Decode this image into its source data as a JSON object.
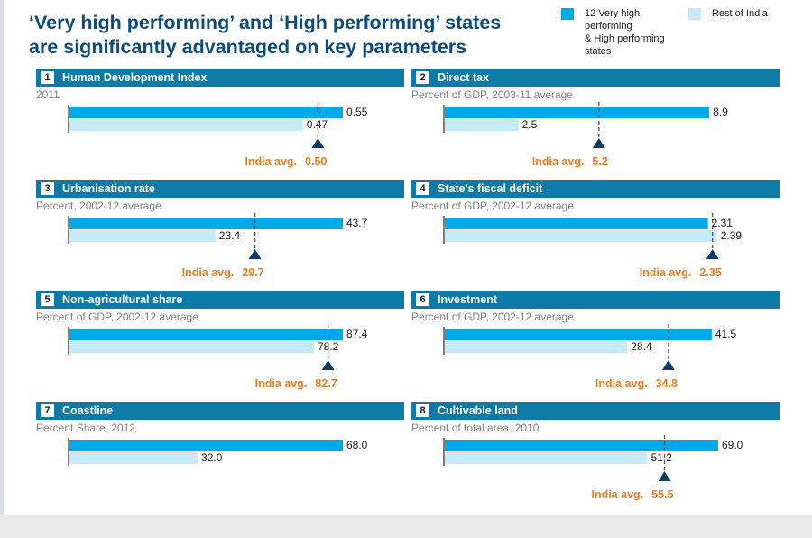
{
  "title": {
    "line1": "‘Very high performing’ and ‘High performing’ states",
    "line2": "are significantly advantaged on key parameters"
  },
  "legend": {
    "series1": [
      "12 Very high",
      "performing",
      "& High performing",
      "states"
    ],
    "series2": "Rest of India"
  },
  "colors": {
    "series1": "#00a9e8",
    "series2": "#c5eaf9",
    "header": "#0e7aa8",
    "india_avg": "#f07d1c",
    "marker": "#0d3a66"
  },
  "avg_label": "India avg.",
  "chart_data": [
    {
      "type": "bar",
      "number": "1",
      "title": "Human Development Index",
      "subtitle": "2011",
      "series": [
        {
          "name": "12 Very high performing & High performing states",
          "value": 0.55,
          "label": "0.55"
        },
        {
          "name": "Rest of India",
          "value": 0.47,
          "label": "0.47"
        }
      ],
      "india_avg": 0.5,
      "india_avg_label": "0.50",
      "xlim": [
        0.0,
        0.55
      ]
    },
    {
      "type": "bar",
      "number": "2",
      "title": "Direct tax",
      "subtitle": "Percent of GDP, 2003-11 average",
      "series": [
        {
          "name": "12 Very high performing & High performing states",
          "value": 8.9,
          "label": "8.9"
        },
        {
          "name": "Rest of India",
          "value": 2.5,
          "label": "2.5"
        }
      ],
      "india_avg": 5.2,
      "india_avg_label": "5.2",
      "xlim": [
        0,
        9.2
      ]
    },
    {
      "type": "bar",
      "number": "3",
      "title": "Urbanisation rate",
      "subtitle": "Percent, 2002-12 average",
      "series": [
        {
          "name": "12 Very high performing & High performing states",
          "value": 43.7,
          "label": "43.7"
        },
        {
          "name": "Rest of India",
          "value": 23.4,
          "label": "23.4"
        }
      ],
      "india_avg": 29.7,
      "india_avg_label": "29.7",
      "xlim": [
        0,
        43.7
      ]
    },
    {
      "type": "bar",
      "number": "4",
      "title": "State's fiscal deficit",
      "subtitle": "Percent of GDP, 2002-12 average",
      "series": [
        {
          "name": "12 Very high performing & High performing states",
          "value": 2.31,
          "label": "2.31"
        },
        {
          "name": "Rest of India",
          "value": 2.39,
          "label": "2.39"
        }
      ],
      "india_avg": 2.35,
      "india_avg_label": "2.35",
      "xlim": [
        0,
        2.4
      ]
    },
    {
      "type": "bar",
      "number": "5",
      "title": "Non-agricultural share",
      "subtitle": "Percent of GDP, 2002-12 average",
      "series": [
        {
          "name": "12 Very high performing & High performing states",
          "value": 87.4,
          "label": "87.4"
        },
        {
          "name": "Rest of India",
          "value": 78.2,
          "label": "78.2"
        }
      ],
      "india_avg": 82.7,
      "india_avg_label": "82.7",
      "xlim": [
        0,
        87.4
      ]
    },
    {
      "type": "bar",
      "number": "6",
      "title": "Investment",
      "subtitle": "Percent of GDP, 2002-12 average",
      "series": [
        {
          "name": "12 Very high performing & High performing states",
          "value": 41.5,
          "label": "41.5"
        },
        {
          "name": "Rest of India",
          "value": 28.4,
          "label": "28.4"
        }
      ],
      "india_avg": 34.8,
      "india_avg_label": "34.8",
      "xlim": [
        0,
        42.5
      ]
    },
    {
      "type": "bar",
      "number": "7",
      "title": "Coastline",
      "subtitle": "Percent Share, 2012",
      "series": [
        {
          "name": "12 Very high performing & High performing states",
          "value": 68.0,
          "label": "68.0"
        },
        {
          "name": "Rest of India",
          "value": 32.0,
          "label": "32.0"
        }
      ],
      "india_avg": null,
      "india_avg_label": "",
      "xlim": [
        0,
        68.0
      ]
    },
    {
      "type": "bar",
      "number": "8",
      "title": "Cultivable land",
      "subtitle": "Percent of total area, 2010",
      "series": [
        {
          "name": "12 Very high performing & High performing states",
          "value": 69.0,
          "label": "69.0"
        },
        {
          "name": "Rest of India",
          "value": 51.2,
          "label": "51.2"
        }
      ],
      "india_avg": 55.5,
      "india_avg_label": "55.5",
      "xlim": [
        0,
        69.0
      ]
    }
  ]
}
